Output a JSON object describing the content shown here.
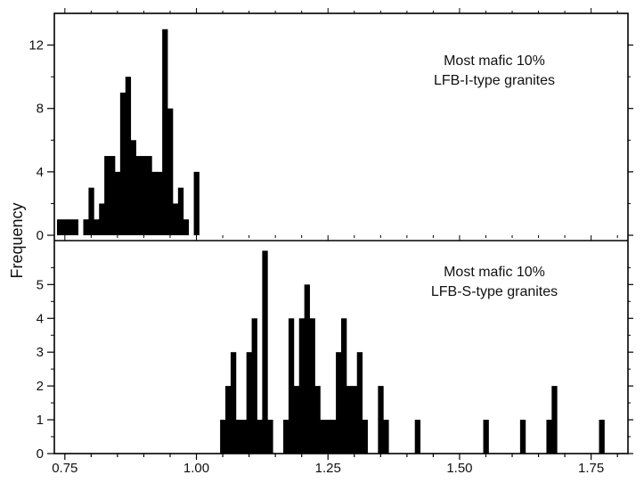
{
  "chart_data": {
    "type": "bar",
    "ylabel": "Frequency",
    "xlabel": "",
    "xlim": [
      0.73,
      1.82
    ],
    "x_ticks": [
      "0.75",
      "1.00",
      "1.25",
      "1.50",
      "1.75"
    ],
    "bin_width": 0.01,
    "grid": false,
    "panels": [
      {
        "annotation": [
          "Most mafic 10%",
          "LFB-I-type granites"
        ],
        "ylim": [
          0,
          14
        ],
        "y_ticks": [
          "0",
          "4",
          "8",
          "12"
        ],
        "bins": [
          {
            "x": 0.74,
            "y": 1
          },
          {
            "x": 0.75,
            "y": 1
          },
          {
            "x": 0.76,
            "y": 1
          },
          {
            "x": 0.77,
            "y": 1
          },
          {
            "x": 0.79,
            "y": 1
          },
          {
            "x": 0.8,
            "y": 3
          },
          {
            "x": 0.81,
            "y": 1
          },
          {
            "x": 0.82,
            "y": 2
          },
          {
            "x": 0.83,
            "y": 5
          },
          {
            "x": 0.84,
            "y": 5
          },
          {
            "x": 0.85,
            "y": 4
          },
          {
            "x": 0.86,
            "y": 9
          },
          {
            "x": 0.87,
            "y": 10
          },
          {
            "x": 0.88,
            "y": 6
          },
          {
            "x": 0.89,
            "y": 5
          },
          {
            "x": 0.9,
            "y": 5
          },
          {
            "x": 0.91,
            "y": 5
          },
          {
            "x": 0.92,
            "y": 4
          },
          {
            "x": 0.93,
            "y": 4
          },
          {
            "x": 0.94,
            "y": 13
          },
          {
            "x": 0.95,
            "y": 8
          },
          {
            "x": 0.96,
            "y": 2
          },
          {
            "x": 0.97,
            "y": 3
          },
          {
            "x": 0.98,
            "y": 1
          },
          {
            "x": 1.0,
            "y": 4
          }
        ]
      },
      {
        "annotation": [
          "Most mafic 10%",
          "LFB-S-type granites"
        ],
        "ylim": [
          0,
          6.3
        ],
        "y_ticks": [
          "0",
          "1",
          "2",
          "3",
          "4",
          "5"
        ],
        "bins": [
          {
            "x": 1.05,
            "y": 1
          },
          {
            "x": 1.06,
            "y": 2
          },
          {
            "x": 1.07,
            "y": 3
          },
          {
            "x": 1.08,
            "y": 1
          },
          {
            "x": 1.09,
            "y": 1
          },
          {
            "x": 1.1,
            "y": 3
          },
          {
            "x": 1.11,
            "y": 4
          },
          {
            "x": 1.12,
            "y": 1
          },
          {
            "x": 1.13,
            "y": 6
          },
          {
            "x": 1.14,
            "y": 1
          },
          {
            "x": 1.17,
            "y": 1
          },
          {
            "x": 1.18,
            "y": 4
          },
          {
            "x": 1.19,
            "y": 2
          },
          {
            "x": 1.2,
            "y": 4
          },
          {
            "x": 1.21,
            "y": 5
          },
          {
            "x": 1.22,
            "y": 4
          },
          {
            "x": 1.23,
            "y": 2
          },
          {
            "x": 1.24,
            "y": 1
          },
          {
            "x": 1.25,
            "y": 1
          },
          {
            "x": 1.26,
            "y": 1
          },
          {
            "x": 1.27,
            "y": 3
          },
          {
            "x": 1.28,
            "y": 4
          },
          {
            "x": 1.29,
            "y": 2
          },
          {
            "x": 1.3,
            "y": 2
          },
          {
            "x": 1.31,
            "y": 3
          },
          {
            "x": 1.32,
            "y": 1
          },
          {
            "x": 1.35,
            "y": 2
          },
          {
            "x": 1.36,
            "y": 1
          },
          {
            "x": 1.42,
            "y": 1
          },
          {
            "x": 1.55,
            "y": 1
          },
          {
            "x": 1.62,
            "y": 1
          },
          {
            "x": 1.67,
            "y": 1
          },
          {
            "x": 1.68,
            "y": 2
          },
          {
            "x": 1.77,
            "y": 1
          }
        ]
      }
    ]
  }
}
